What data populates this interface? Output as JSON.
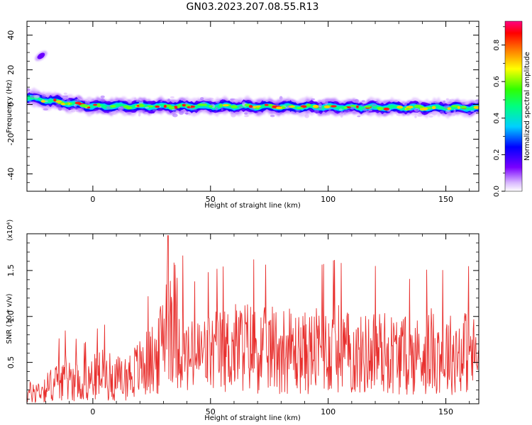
{
  "title": "GN03.2023.207.08.55.R13",
  "chart_data": [
    {
      "type": "heatmap",
      "xlabel": "Height of straight line (km)",
      "ylabel": "Frequency (Hz)",
      "xlim": [
        -28,
        164
      ],
      "ylim": [
        -50,
        48
      ],
      "xticks": [
        0,
        50,
        100,
        150
      ],
      "yticks": [
        -40,
        -20,
        0,
        20,
        40
      ],
      "colorbar": {
        "label": "Normalized spectral amplitude",
        "range": [
          0,
          0.93
        ],
        "ticks": [
          "0.0",
          "0.2",
          "0.4",
          "0.6",
          "0.8"
        ]
      },
      "features": {
        "main_band_freq_hz": [
          [
            -28,
            4
          ],
          [
            -15,
            1.5
          ],
          [
            0,
            -1
          ],
          [
            50,
            -1
          ],
          [
            100,
            -1.5
          ],
          [
            164,
            -2
          ]
        ],
        "isolated_blob": {
          "x": -22,
          "y": 28
        }
      }
    },
    {
      "type": "line",
      "xlabel": "Height of straight line (km)",
      "ylabel": "SNR (10 * v/v)",
      "y_exponent_label": "(x10⁴)",
      "xlim": [
        -28,
        164
      ],
      "ylim": [
        0.05,
        1.9
      ],
      "xticks": [
        0,
        50,
        100,
        150
      ],
      "yticks": [
        "0.5",
        "1.0",
        "1.5"
      ],
      "series": [
        {
          "color": "#e8302e",
          "x": [
            -28,
            -20,
            -12,
            -4,
            4,
            12,
            20,
            28,
            32,
            40,
            48,
            56,
            64,
            72,
            80,
            88,
            96,
            104,
            112,
            120,
            128,
            136,
            144,
            152,
            160,
            164
          ],
          "values": [
            0.25,
            0.35,
            0.55,
            0.45,
            0.6,
            0.5,
            0.7,
            0.9,
            1.85,
            0.85,
            0.95,
            1.0,
            1.1,
            1.0,
            1.05,
            0.95,
            1.0,
            1.05,
            0.9,
            1.0,
            0.95,
            0.9,
            1.0,
            0.95,
            1.0,
            0.85
          ]
        }
      ]
    }
  ]
}
